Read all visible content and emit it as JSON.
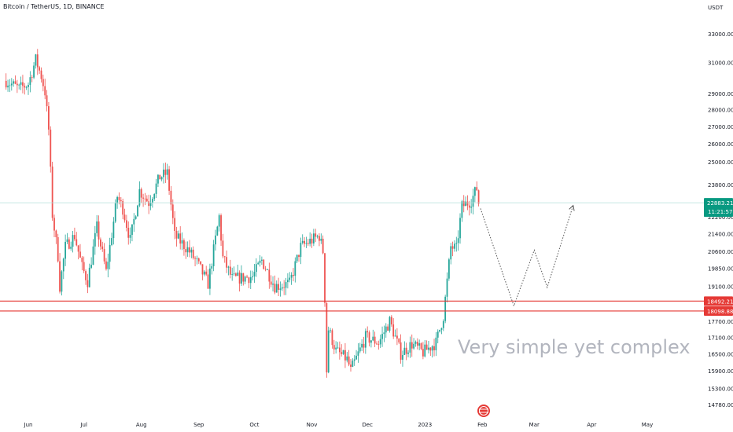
{
  "title": "Bitcoin / TetherUS, 1D, BINANCE",
  "unit": "USDT",
  "annotation": "Very simple yet complex",
  "colors": {
    "up": "#26a69a",
    "down": "#ef5350",
    "level_line": "#e53935",
    "current_line": "#b2dfdb",
    "current_tag": "#089981",
    "projection": "#555555"
  },
  "chart_data": {
    "type": "candlestick",
    "y_scale": "log",
    "ylim": [
      14400,
      34200
    ],
    "y_ticks": [
      33000,
      31000,
      29000,
      28000,
      27000,
      26000,
      25000,
      23800,
      22200,
      21400,
      20600,
      19850,
      19100,
      17700,
      17100,
      16500,
      15900,
      15300,
      14780
    ],
    "y_tick_labels": [
      "33000.00",
      "31000.00",
      "29000.00",
      "28000.00",
      "27000.00",
      "26000.00",
      "25000.00",
      "23800.00",
      "22200.00",
      "21400.00",
      "20600.00",
      "19850.00",
      "19100.00",
      "17700.00",
      "17100.00",
      "16500.00",
      "15900.00",
      "15300.00",
      "14780.00"
    ],
    "x_range": [
      "2022-06-01",
      "2023-05-31"
    ],
    "x_ticks": [
      "2022-06-01",
      "2022-07-01",
      "2022-08-01",
      "2022-09-01",
      "2022-10-01",
      "2022-11-01",
      "2022-12-01",
      "2023-01-01",
      "2023-02-01",
      "2023-03-01",
      "2023-04-01",
      "2023-05-01"
    ],
    "x_tick_labels": [
      "Jun",
      "Jul",
      "Aug",
      "Sep",
      "Oct",
      "Nov",
      "Dec",
      "2023",
      "Feb",
      "Mar",
      "Apr",
      "May"
    ],
    "anchors": [
      [
        "2022-05-20",
        29800
      ],
      [
        "2022-05-27",
        29300
      ],
      [
        "2022-06-01",
        29600
      ],
      [
        "2022-06-05",
        31200
      ],
      [
        "2022-06-08",
        30100
      ],
      [
        "2022-06-10",
        29100
      ],
      [
        "2022-06-12",
        26800
      ],
      [
        "2022-06-14",
        22300
      ],
      [
        "2022-06-17",
        20400
      ],
      [
        "2022-06-18",
        19100
      ],
      [
        "2022-06-21",
        20800
      ],
      [
        "2022-06-26",
        21300
      ],
      [
        "2022-06-30",
        19900
      ],
      [
        "2022-07-03",
        19300
      ],
      [
        "2022-07-08",
        21700
      ],
      [
        "2022-07-13",
        19700
      ],
      [
        "2022-07-19",
        23200
      ],
      [
        "2022-07-22",
        22600
      ],
      [
        "2022-07-26",
        21100
      ],
      [
        "2022-07-31",
        23500
      ],
      [
        "2022-08-05",
        22900
      ],
      [
        "2022-08-11",
        24200
      ],
      [
        "2022-08-15",
        24400
      ],
      [
        "2022-08-19",
        21300
      ],
      [
        "2022-08-26",
        20700
      ],
      [
        "2022-08-31",
        20100
      ],
      [
        "2022-09-06",
        19200
      ],
      [
        "2022-09-12",
        22200
      ],
      [
        "2022-09-14",
        20300
      ],
      [
        "2022-09-19",
        19400
      ],
      [
        "2022-09-30",
        19500
      ],
      [
        "2022-10-05",
        20200
      ],
      [
        "2022-10-12",
        19100
      ],
      [
        "2022-10-20",
        19200
      ],
      [
        "2022-10-26",
        20800
      ],
      [
        "2022-11-05",
        21300
      ],
      [
        "2022-11-07",
        20600
      ],
      [
        "2022-11-08",
        18600
      ],
      [
        "2022-11-09",
        15900
      ],
      [
        "2022-11-10",
        17400
      ],
      [
        "2022-11-14",
        16600
      ],
      [
        "2022-11-20",
        16300
      ],
      [
        "2022-11-22",
        15900
      ],
      [
        "2022-11-30",
        17100
      ],
      [
        "2022-12-07",
        16900
      ],
      [
        "2022-12-13",
        17700
      ],
      [
        "2022-12-15",
        17300
      ],
      [
        "2022-12-19",
        16500
      ],
      [
        "2022-12-25",
        16850
      ],
      [
        "2022-12-31",
        16550
      ],
      [
        "2023-01-07",
        16900
      ],
      [
        "2023-01-11",
        17900
      ],
      [
        "2023-01-13",
        19300
      ],
      [
        "2023-01-15",
        20800
      ],
      [
        "2023-01-18",
        20700
      ],
      [
        "2023-01-21",
        22700
      ],
      [
        "2023-01-26",
        23000
      ],
      [
        "2023-01-29",
        23600
      ],
      [
        "2023-01-30",
        22883.21
      ]
    ],
    "levels": [
      {
        "label": "18492.21",
        "value": 18492.21
      },
      {
        "label": "18098.88",
        "value": 18098.88
      }
    ],
    "current_price": {
      "label": "22883.21",
      "sub_label": "11:21:57",
      "value": 22883.21
    },
    "projection_path": [
      [
        "2023-01-31",
        22600
      ],
      [
        "2023-02-18",
        18300
      ],
      [
        "2023-03-01",
        20650
      ],
      [
        "2023-03-08",
        19050
      ],
      [
        "2023-03-22",
        22750
      ]
    ],
    "projection_style": "dotted",
    "grid": false
  }
}
